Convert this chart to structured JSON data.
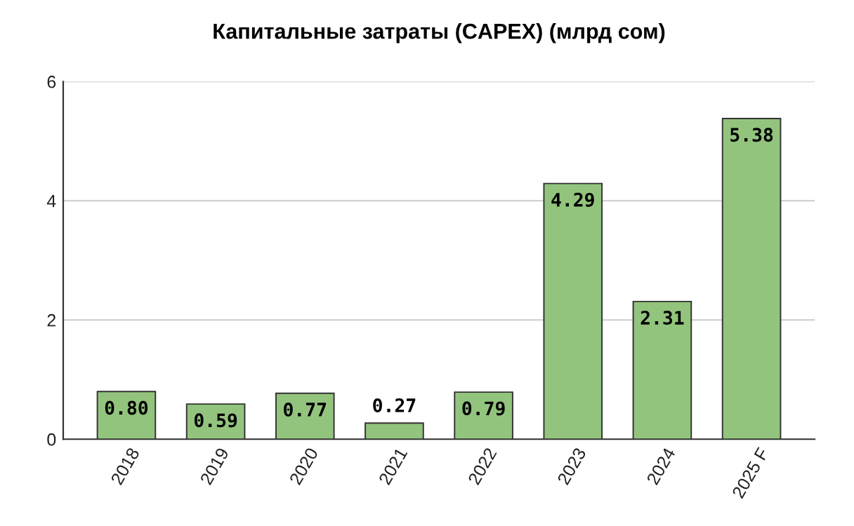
{
  "chart_data": {
    "type": "bar",
    "title": "Капитальные затраты (CAPEX) (млрд сом)",
    "categories": [
      "2018",
      "2019",
      "2020",
      "2021",
      "2022",
      "2023",
      "2024",
      "2025 F"
    ],
    "values": [
      0.8,
      0.59,
      0.77,
      0.27,
      0.79,
      4.29,
      2.31,
      5.38
    ],
    "value_labels": [
      "0.80",
      "0.59",
      "0.77",
      "0.27",
      "0.79",
      "4.29",
      "2.31",
      "5.38"
    ],
    "color": "#93c47d",
    "ylim": [
      0,
      6
    ],
    "yticks": [
      0,
      2,
      4,
      6
    ],
    "grid": "y"
  }
}
